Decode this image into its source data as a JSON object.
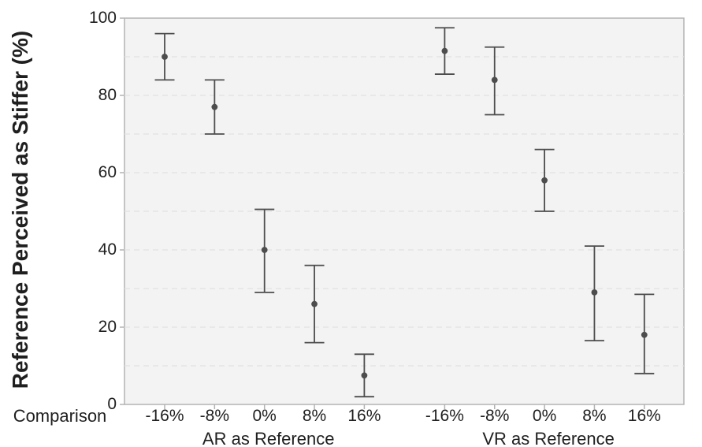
{
  "chart_data": {
    "type": "scatter",
    "mark": "point-with-error-bars",
    "title": "",
    "ylabel": "Reference Perceived as Stiffer (%)",
    "xlabel": "Comparison",
    "ylim": [
      0,
      100
    ],
    "yticks": [
      0,
      20,
      40,
      60,
      80,
      100
    ],
    "gridlines": {
      "orientation": "horizontal",
      "style": "dashed",
      "from": 10,
      "to": 90,
      "every": 10
    },
    "legend_position": "none",
    "categories": [
      "-16%",
      "-8%",
      "0%",
      "8%",
      "16%"
    ],
    "series": [
      {
        "name": "AR as Reference",
        "points": [
          {
            "category": "-16%",
            "mean": 90,
            "ci_low": 84,
            "ci_high": 96
          },
          {
            "category": "-8%",
            "mean": 77,
            "ci_low": 70,
            "ci_high": 84
          },
          {
            "category": "0%",
            "mean": 40,
            "ci_low": 29,
            "ci_high": 50.5
          },
          {
            "category": "8%",
            "mean": 26,
            "ci_low": 16,
            "ci_high": 36
          },
          {
            "category": "16%",
            "mean": 7.5,
            "ci_low": 2,
            "ci_high": 13
          }
        ]
      },
      {
        "name": "VR as Reference",
        "points": [
          {
            "category": "-16%",
            "mean": 91.5,
            "ci_low": 85.5,
            "ci_high": 97.5
          },
          {
            "category": "-8%",
            "mean": 84,
            "ci_low": 75,
            "ci_high": 92.5
          },
          {
            "category": "0%",
            "mean": 58,
            "ci_low": 50,
            "ci_high": 66
          },
          {
            "category": "8%",
            "mean": 29,
            "ci_low": 16.5,
            "ci_high": 41
          },
          {
            "category": "16%",
            "mean": 18,
            "ci_low": 8,
            "ci_high": 28.5
          }
        ]
      }
    ],
    "colors": {
      "point": "#4d4d4d",
      "error_bar": "#4d4d4d",
      "panel_bg": "#f3f3f3",
      "panel_border": "#b3b3b3",
      "gridline": "#e2e2e2",
      "tick": "#b3b3b3",
      "text": "#1f1f1f"
    }
  }
}
